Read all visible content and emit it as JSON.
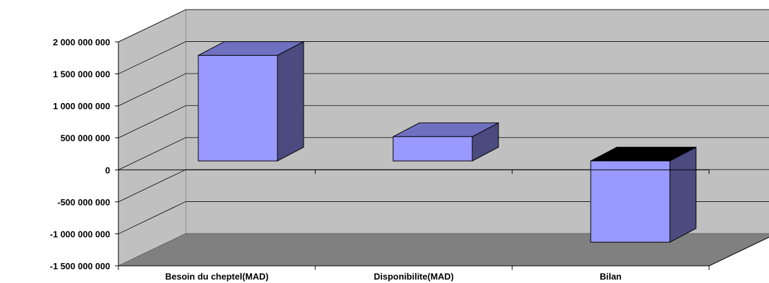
{
  "chart_data": {
    "type": "bar",
    "subtype": "3d-column",
    "categories": [
      "Besoin du cheptel(MAD)",
      "Disponibilite(MAD)",
      "Bilan"
    ],
    "values": [
      1650000000,
      380000000,
      -1270000000
    ],
    "ylim": [
      -1500000000,
      2000000000
    ],
    "yticks": [
      2000000000,
      1500000000,
      1000000000,
      500000000,
      0,
      -500000000,
      -1000000000,
      -1500000000
    ],
    "ytick_labels": [
      "2 000 000 000",
      "1 500 000 000",
      "1 000 000 000",
      "500 000 000",
      "0",
      "-500 000 000",
      "-1 000 000 000",
      "-1 500 000 000"
    ],
    "title": "",
    "xlabel": "",
    "ylabel": "",
    "grid": true,
    "legend": false
  },
  "colors": {
    "bar_front": "#9999ff",
    "bar_side": "#4b4b7f",
    "bar_top": "#7070c0",
    "back_wall": "#c0c0c0",
    "side_wall": "#c0c0c0",
    "floor": "#808080",
    "grid": "#000000"
  }
}
